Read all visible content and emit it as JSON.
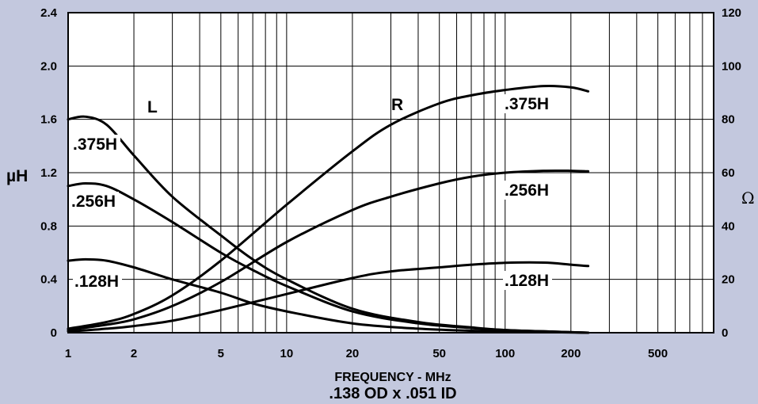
{
  "chart_data": {
    "type": "line",
    "xlabel": "FREQUENCY - MHz",
    "subtitle": ".138 OD x .051 ID",
    "ylabel_left": "µH",
    "ylabel_right": "Ω",
    "x_scale": "log",
    "xlim": [
      1,
      900
    ],
    "ylim_left": [
      0,
      2.4
    ],
    "ylim_right": [
      0,
      120
    ],
    "grid": true,
    "x_ticks": [
      1,
      2,
      5,
      10,
      20,
      50,
      100,
      200,
      500
    ],
    "x_tick_labels": [
      "1",
      "2",
      "5",
      "10",
      "20",
      "50",
      "100",
      "200",
      "500"
    ],
    "y_left_ticks": [
      0,
      0.4,
      0.8,
      1.2,
      1.6,
      2.0,
      2.4
    ],
    "y_left_tick_labels": [
      "0",
      "0.4",
      "0.8",
      "1.2",
      "1.6",
      "2.0",
      "2.4"
    ],
    "y_right_ticks": [
      0,
      20,
      40,
      60,
      80,
      100,
      120
    ],
    "y_right_tick_labels": [
      "0",
      "20",
      "40",
      "60",
      "80",
      "100",
      "120"
    ],
    "group_labels": [
      "L",
      "R"
    ],
    "series": [
      {
        "group": "L",
        "label": ".375H",
        "axis": "left",
        "x": [
          1,
          1.2,
          1.5,
          2,
          3,
          5,
          7,
          10,
          20,
          40,
          70,
          100,
          150,
          240
        ],
        "y": [
          1.6,
          1.62,
          1.56,
          1.33,
          1.02,
          0.73,
          0.55,
          0.4,
          0.18,
          0.08,
          0.04,
          0.02,
          0.01,
          0.0
        ]
      },
      {
        "group": "L",
        "label": ".256H",
        "axis": "left",
        "x": [
          1,
          1.2,
          1.5,
          2,
          3,
          5,
          7,
          10,
          20,
          40,
          70,
          100,
          150,
          240
        ],
        "y": [
          1.1,
          1.12,
          1.1,
          1.0,
          0.83,
          0.6,
          0.47,
          0.35,
          0.16,
          0.07,
          0.035,
          0.02,
          0.01,
          0.0
        ]
      },
      {
        "group": "L",
        "label": ".128H",
        "axis": "left",
        "x": [
          1,
          1.2,
          1.5,
          2,
          3,
          5,
          7,
          10,
          20,
          40,
          70,
          100,
          150,
          240
        ],
        "y": [
          0.54,
          0.55,
          0.54,
          0.49,
          0.4,
          0.3,
          0.22,
          0.16,
          0.07,
          0.03,
          0.015,
          0.01,
          0.005,
          0.0
        ]
      },
      {
        "group": "R",
        "label": ".375H",
        "axis": "right",
        "x": [
          1,
          1.5,
          2,
          3,
          5,
          10,
          20,
          30,
          50,
          70,
          100,
          150,
          200,
          240
        ],
        "y": [
          1.5,
          4,
          7,
          14,
          27,
          48,
          68,
          78,
          86,
          89,
          91,
          92.5,
          92,
          90.5
        ]
      },
      {
        "group": "R",
        "label": ".256H",
        "axis": "right",
        "x": [
          1,
          1.5,
          2,
          3,
          5,
          10,
          20,
          30,
          50,
          70,
          100,
          150,
          200,
          240
        ],
        "y": [
          1,
          3,
          5,
          10,
          19,
          34,
          46,
          51,
          56,
          58.5,
          60,
          60.7,
          60.7,
          60.5
        ]
      },
      {
        "group": "R",
        "label": ".128H",
        "axis": "right",
        "x": [
          1,
          1.5,
          2,
          3,
          5,
          10,
          20,
          30,
          50,
          70,
          100,
          150,
          200,
          240
        ],
        "y": [
          0.5,
          1.5,
          2.5,
          4.5,
          8.5,
          14.5,
          20.5,
          23,
          24.5,
          25.5,
          26.2,
          26.3,
          25.5,
          25
        ]
      }
    ]
  }
}
